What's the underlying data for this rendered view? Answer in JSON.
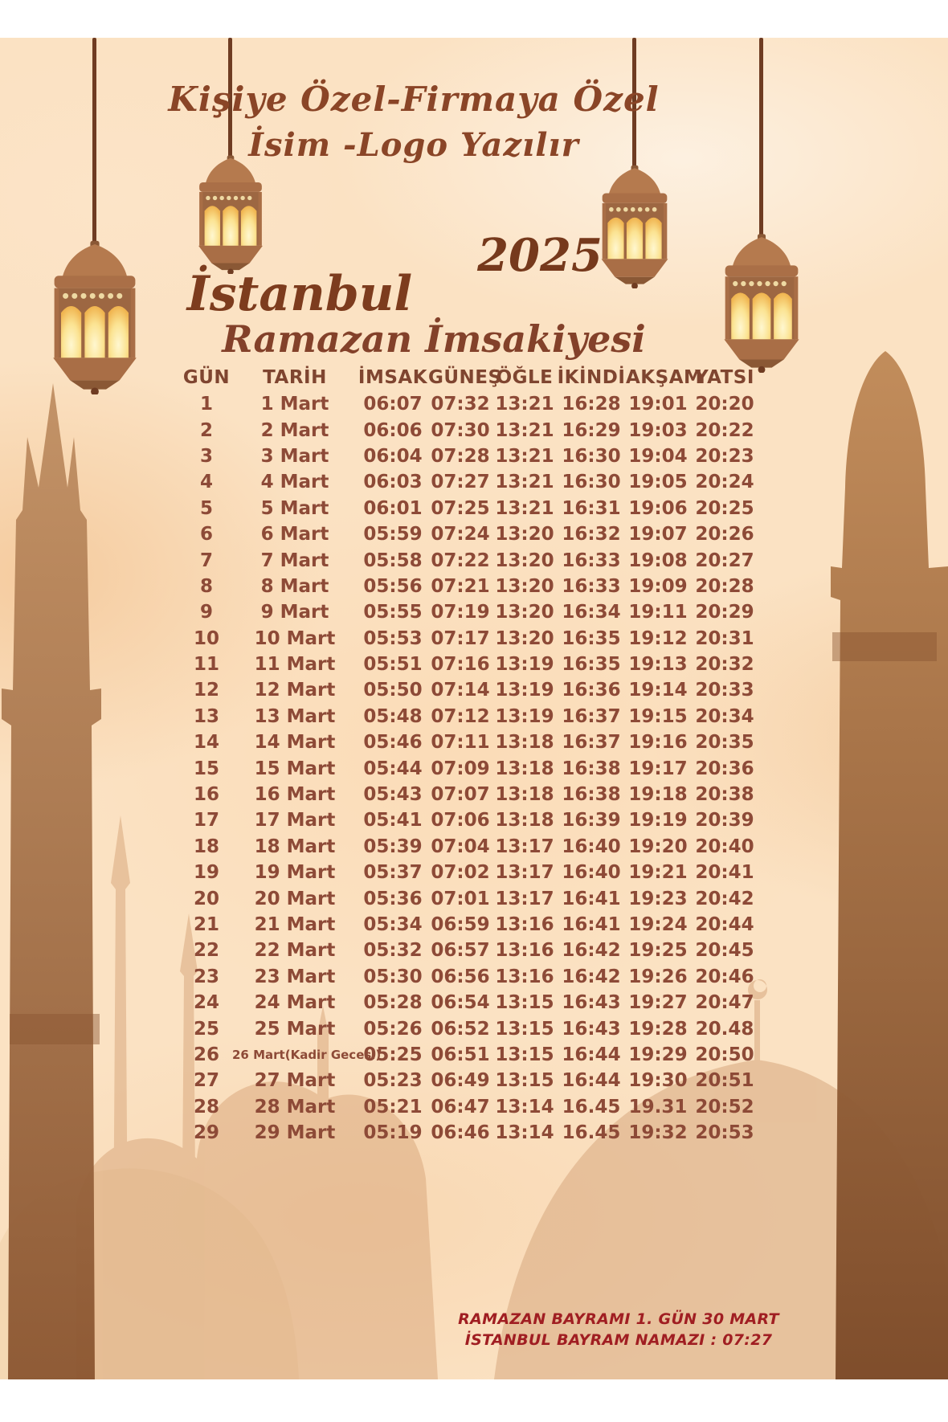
{
  "poster": {
    "promo_line1": "Kişiye Özel-Firmaya Özel",
    "promo_line2": "İsim -Logo Yazılır",
    "year": "2025",
    "city": "İstanbul",
    "title": "Ramazan İmsakiyesi"
  },
  "table": {
    "columns": [
      "GÜN",
      "TARİH",
      "İMSAK",
      "GÜNEŞ",
      "ÖĞLE",
      "İKİNDİ",
      "AKŞAM",
      "YATSI"
    ],
    "rows": [
      [
        "1",
        "1 Mart",
        "06:07",
        "07:32",
        "13:21",
        "16:28",
        "19:01",
        "20:20"
      ],
      [
        "2",
        "2 Mart",
        "06:06",
        "07:30",
        "13:21",
        "16:29",
        "19:03",
        "20:22"
      ],
      [
        "3",
        "3 Mart",
        "06:04",
        "07:28",
        "13:21",
        "16:30",
        "19:04",
        "20:23"
      ],
      [
        "4",
        "4 Mart",
        "06:03",
        "07:27",
        "13:21",
        "16:30",
        "19:05",
        "20:24"
      ],
      [
        "5",
        "5 Mart",
        "06:01",
        "07:25",
        "13:21",
        "16:31",
        "19:06",
        "20:25"
      ],
      [
        "6",
        "6 Mart",
        "05:59",
        "07:24",
        "13:20",
        "16:32",
        "19:07",
        "20:26"
      ],
      [
        "7",
        "7 Mart",
        "05:58",
        "07:22",
        "13:20",
        "16:33",
        "19:08",
        "20:27"
      ],
      [
        "8",
        "8 Mart",
        "05:56",
        "07:21",
        "13:20",
        "16:33",
        "19:09",
        "20:28"
      ],
      [
        "9",
        "9 Mart",
        "05:55",
        "07:19",
        "13:20",
        "16:34",
        "19:11",
        "20:29"
      ],
      [
        "10",
        "10 Mart",
        "05:53",
        "07:17",
        "13:20",
        "16:35",
        "19:12",
        "20:31"
      ],
      [
        "11",
        "11 Mart",
        "05:51",
        "07:16",
        "13:19",
        "16:35",
        "19:13",
        "20:32"
      ],
      [
        "12",
        "12 Mart",
        "05:50",
        "07:14",
        "13:19",
        "16:36",
        "19:14",
        "20:33"
      ],
      [
        "13",
        "13 Mart",
        "05:48",
        "07:12",
        "13:19",
        "16:37",
        "19:15",
        "20:34"
      ],
      [
        "14",
        "14 Mart",
        "05:46",
        "07:11",
        "13:18",
        "16:37",
        "19:16",
        "20:35"
      ],
      [
        "15",
        "15 Mart",
        "05:44",
        "07:09",
        "13:18",
        "16:38",
        "19:17",
        "20:36"
      ],
      [
        "16",
        "16 Mart",
        "05:43",
        "07:07",
        "13:18",
        "16:38",
        "19:18",
        "20:38"
      ],
      [
        "17",
        "17 Mart",
        "05:41",
        "07:06",
        "13:18",
        "16:39",
        "19:19",
        "20:39"
      ],
      [
        "18",
        "18 Mart",
        "05:39",
        "07:04",
        "13:17",
        "16:40",
        "19:20",
        "20:40"
      ],
      [
        "19",
        "19 Mart",
        "05:37",
        "07:02",
        "13:17",
        "16:40",
        "19:21",
        "20:41"
      ],
      [
        "20",
        "20 Mart",
        "05:36",
        "07:01",
        "13:17",
        "16:41",
        "19:23",
        "20:42"
      ],
      [
        "21",
        "21 Mart",
        "05:34",
        "06:59",
        "13:16",
        "16:41",
        "19:24",
        "20:44"
      ],
      [
        "22",
        "22 Mart",
        "05:32",
        "06:57",
        "13:16",
        "16:42",
        "19:25",
        "20:45"
      ],
      [
        "23",
        "23 Mart",
        "05:30",
        "06:56",
        "13:16",
        "16:42",
        "19:26",
        "20:46"
      ],
      [
        "24",
        "24 Mart",
        "05:28",
        "06:54",
        "13:15",
        "16:43",
        "19:27",
        "20:47"
      ],
      [
        "25",
        "25 Mart",
        "05:26",
        "06:52",
        "13:15",
        "16:43",
        "19:28",
        "20.48"
      ],
      [
        "26",
        "26 Mart(Kadir Gecesi)",
        "05:25",
        "06:51",
        "13:15",
        "16:44",
        "19:29",
        "20:50"
      ],
      [
        "27",
        "27 Mart",
        "05:23",
        "06:49",
        "13:15",
        "16:44",
        "19:30",
        "20:51"
      ],
      [
        "28",
        "28 Mart",
        "05:21",
        "06:47",
        "13:14",
        "16.45",
        "19.31",
        "20:52"
      ],
      [
        "29",
        "29 Mart",
        "05:19",
        "06:46",
        "13:14",
        "16.45",
        "19:32",
        "20:53"
      ]
    ]
  },
  "footer": {
    "line1": "RAMAZAN BAYRAMI 1. GÜN 30 MART",
    "line2": "İSTANBUL BAYRAM NAMAZI : 07:27"
  },
  "colors": {
    "background": "#fbe2c3",
    "script_brown": "#8a4527",
    "table_text": "#8d4a37",
    "footer_red": "#a01e22",
    "lantern_glow": "#f5c15e",
    "silhouette_tan": "#d7a478"
  },
  "icons": {
    "lantern": "lantern-icon",
    "crescent": "crescent-icon",
    "minaret": "minaret-silhouette-icon",
    "mosque": "mosque-silhouette-icon"
  }
}
